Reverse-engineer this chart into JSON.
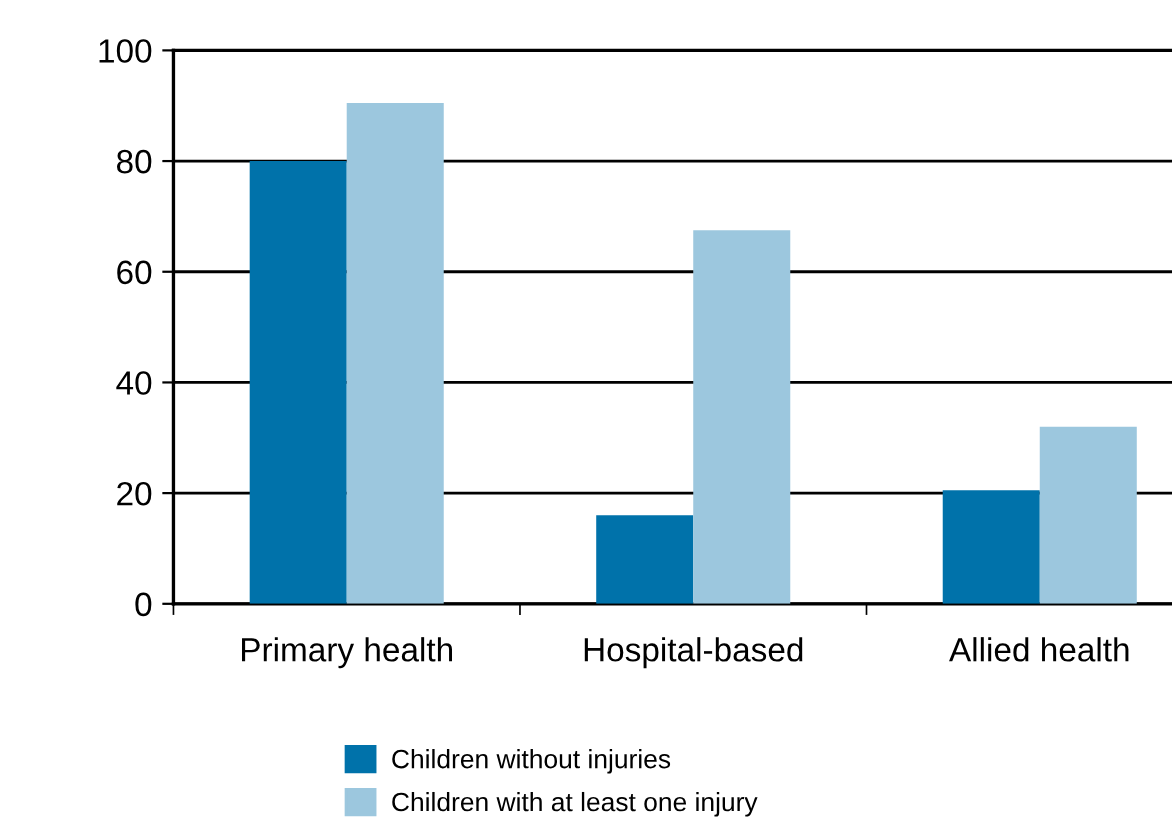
{
  "chart_data": {
    "type": "bar",
    "categories": [
      "Primary health",
      "Hospital-based",
      "Allied health"
    ],
    "series": [
      {
        "name": "Children without injuries",
        "color": "#0072aa",
        "values": [
          80,
          16,
          20.5
        ]
      },
      {
        "name": "Children with at least one injury",
        "color": "#9cc7de",
        "values": [
          90.5,
          67.5,
          32
        ]
      }
    ],
    "ylim": [
      0,
      100
    ],
    "yticks": [
      0,
      20,
      40,
      60,
      80,
      100
    ],
    "grid": "y",
    "legend": "bottom"
  }
}
